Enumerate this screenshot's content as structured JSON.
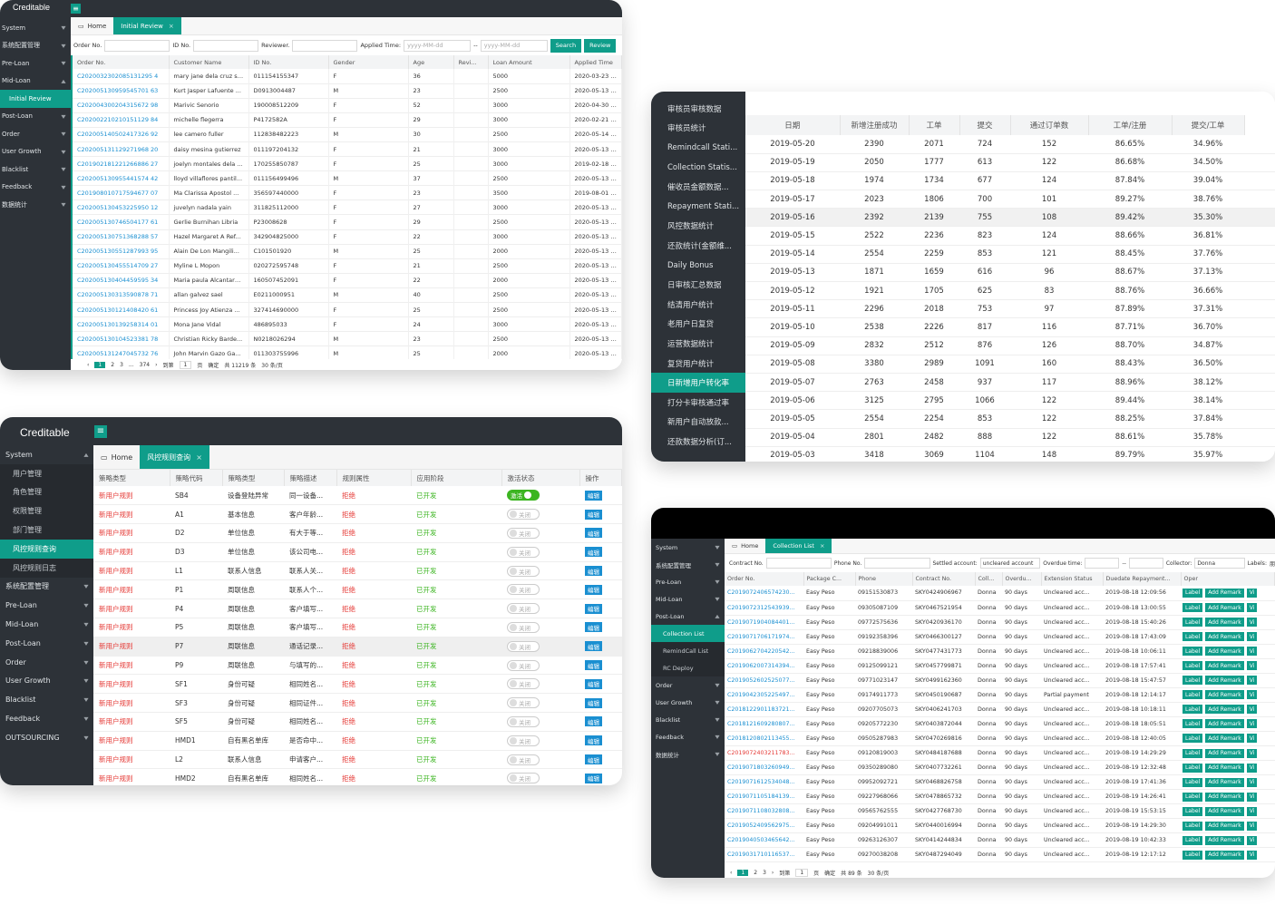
{
  "c1": {
    "logo": "Creditable",
    "hamburger": "≡",
    "menu": [
      {
        "label": "System",
        "arrow": "▾"
      },
      {
        "label": "系统配置管理",
        "arrow": "▾"
      },
      {
        "label": "Pre-Loan",
        "arrow": "▾"
      },
      {
        "label": "Mid-Loan",
        "arrow": "▴"
      },
      {
        "label": "Initial Review",
        "sub": true,
        "active": true
      },
      {
        "label": "Post-Loan",
        "arrow": "▾"
      },
      {
        "label": "Order",
        "arrow": "▾"
      },
      {
        "label": "User Growth",
        "arrow": "▾"
      },
      {
        "label": "Blacklist",
        "arrow": "▾"
      },
      {
        "label": "Feedback",
        "arrow": "▾"
      },
      {
        "label": "数据统计",
        "arrow": "▾"
      }
    ],
    "tab_home": "Home",
    "tab_active": "Initial Review",
    "tab_close": "×",
    "filters": {
      "order_no": "Order No.",
      "id_no": "ID No.",
      "reviewer": "Reviewer.",
      "applied_time": "Applied Time:",
      "date_placeholder": "yyyy-MM-dd",
      "sep": "--",
      "search": "Search",
      "review": "Review"
    },
    "headers": [
      "Order No.",
      "Customer Name",
      "ID No.",
      "Gender",
      "Age",
      "Revi...",
      "Loan Amount",
      "Applied Time"
    ],
    "rows": [
      [
        "C2020032302085131295 4",
        "mary jane dela cruz st...",
        "011154155347",
        "F",
        "36",
        "",
        "5000",
        "2020-03-23 14:"
      ],
      [
        "C202005130959545701 63",
        "Kurt Jasper Lafuente ...",
        "D0913004487",
        "M",
        "23",
        "",
        "2500",
        "2020-05-13 12:"
      ],
      [
        "C202004300204315672 98",
        "Marivic Senorio",
        "190008512209",
        "F",
        "52",
        "",
        "3000",
        "2020-04-30 14:"
      ],
      [
        "C202002210210151129 84",
        "michelle flegerra",
        "P4172582A",
        "F",
        "29",
        "",
        "3000",
        "2020-02-21 14:"
      ],
      [
        "C202005140502417326 92",
        "lee camero fuller",
        "112838482223",
        "M",
        "30",
        "",
        "2500",
        "2020-05-14 05:"
      ],
      [
        "C202005131129271968 20",
        "daisy mesina gutierrez",
        "011197204132",
        "F",
        "21",
        "",
        "3000",
        "2020-05-13 23:"
      ],
      [
        "C201902181221266886 27",
        "joelyn montales dela ...",
        "170255850787",
        "F",
        "25",
        "",
        "3000",
        "2019-02-18 00:"
      ],
      [
        "C202005130955441574 42",
        "lloyd villaflores pantil...",
        "011156499496",
        "M",
        "37",
        "",
        "2500",
        "2020-05-13 21:"
      ],
      [
        "C201908010717594677 07",
        "Ma Clarissa Apostol ...",
        "356597440000",
        "F",
        "23",
        "",
        "3500",
        "2019-08-01 19:"
      ],
      [
        "C202005130453225950 12",
        "juvelyn nadala yain",
        "311825112000",
        "F",
        "27",
        "",
        "3000",
        "2020-05-13 04:"
      ],
      [
        "C202005130746504177 61",
        "Gerlie Burnihan Libria",
        "P23008628",
        "F",
        "29",
        "",
        "2500",
        "2020-05-13 19:"
      ],
      [
        "C202005130751368288 57",
        "Hazel Margaret A Ref...",
        "342904825000",
        "F",
        "22",
        "",
        "3000",
        "2020-05-13 19:"
      ],
      [
        "C202005130551287993 95",
        "Alain De Lon Mangili...",
        "C101501920",
        "M",
        "25",
        "",
        "2000",
        "2020-05-13 17:"
      ],
      [
        "C202005130455514709 27",
        "Myline L Mopon",
        "020272595748",
        "F",
        "21",
        "",
        "2500",
        "2020-05-13 16:"
      ],
      [
        "C202005130404459595 34",
        "Maria paula Alcantara...",
        "160507452091",
        "F",
        "22",
        "",
        "2000",
        "2020-05-13 16:"
      ],
      [
        "C202005130313590878 71",
        "allan galvez sael",
        "E0211000951",
        "M",
        "40",
        "",
        "2500",
        "2020-05-13 15:"
      ],
      [
        "C202005130121408420 61",
        "Princess Joy Atienza ...",
        "327414690000",
        "F",
        "25",
        "",
        "2500",
        "2020-05-13 13:"
      ],
      [
        "C202005130139258314 01",
        "Mona Jane Vidal",
        "486895033",
        "F",
        "24",
        "",
        "3000",
        "2020-05-13 13:"
      ],
      [
        "C202005130104523381 78",
        "Christian Ricky Barde...",
        "N0218026294",
        "M",
        "23",
        "",
        "2500",
        "2020-05-13 13:"
      ],
      [
        "C202005131247045732 76",
        "John Marvin Gazo Ga...",
        "011303755996",
        "M",
        "25",
        "",
        "2000",
        "2020-05-13 12:"
      ]
    ],
    "pager": {
      "prev": "‹",
      "pages": [
        "1",
        "2",
        "3",
        "...",
        "374"
      ],
      "next": "›",
      "goto": "到第",
      "page": "1",
      "page_unit": "页",
      "confirm": "确定",
      "total": "共 11219 条",
      "per": "30 条/页"
    }
  },
  "c2": {
    "menu": [
      "审核员审核数据",
      "审核员统计",
      "Remindcall Stati...",
      "Collection Statis...",
      "催收员金额数据...",
      "Repayment Stati...",
      "风控数据统计",
      "还款统计(金额维...",
      "Daily Bonus",
      "日审核汇总数据",
      "结清用户统计",
      "老用户日复贷",
      "运营数据统计",
      "复贷用户统计",
      "日新增用户转化率",
      "打分卡审核通过率",
      "新用户自动放款...",
      "还款数据分析(订..."
    ],
    "active_index": 14,
    "headers": [
      "日期",
      "新增注册成功",
      "工单",
      "提交",
      "通过订单数",
      "工单/注册",
      "提交/工单"
    ],
    "rows": [
      [
        "2019-05-20",
        "2390",
        "2071",
        "724",
        "152",
        "86.65%",
        "34.96%"
      ],
      [
        "2019-05-19",
        "2050",
        "1777",
        "613",
        "122",
        "86.68%",
        "34.50%"
      ],
      [
        "2019-05-18",
        "1974",
        "1734",
        "677",
        "124",
        "87.84%",
        "39.04%"
      ],
      [
        "2019-05-17",
        "2023",
        "1806",
        "700",
        "101",
        "89.27%",
        "38.76%"
      ],
      [
        "2019-05-16",
        "2392",
        "2139",
        "755",
        "108",
        "89.42%",
        "35.30%"
      ],
      [
        "2019-05-15",
        "2522",
        "2236",
        "823",
        "124",
        "88.66%",
        "36.81%"
      ],
      [
        "2019-05-14",
        "2554",
        "2259",
        "853",
        "121",
        "88.45%",
        "37.76%"
      ],
      [
        "2019-05-13",
        "1871",
        "1659",
        "616",
        "96",
        "88.67%",
        "37.13%"
      ],
      [
        "2019-05-12",
        "1921",
        "1705",
        "625",
        "83",
        "88.76%",
        "36.66%"
      ],
      [
        "2019-05-11",
        "2296",
        "2018",
        "753",
        "97",
        "87.89%",
        "37.31%"
      ],
      [
        "2019-05-10",
        "2538",
        "2226",
        "817",
        "116",
        "87.71%",
        "36.70%"
      ],
      [
        "2019-05-09",
        "2832",
        "2512",
        "876",
        "126",
        "88.70%",
        "34.87%"
      ],
      [
        "2019-05-08",
        "3380",
        "2989",
        "1091",
        "160",
        "88.43%",
        "36.50%"
      ],
      [
        "2019-05-07",
        "2763",
        "2458",
        "937",
        "117",
        "88.96%",
        "38.12%"
      ],
      [
        "2019-05-06",
        "3125",
        "2795",
        "1066",
        "122",
        "89.44%",
        "38.14%"
      ],
      [
        "2019-05-05",
        "2554",
        "2254",
        "853",
        "122",
        "88.25%",
        "37.84%"
      ],
      [
        "2019-05-04",
        "2801",
        "2482",
        "888",
        "122",
        "88.61%",
        "35.78%"
      ],
      [
        "2019-05-03",
        "3418",
        "3069",
        "1104",
        "148",
        "89.79%",
        "35.97%"
      ]
    ],
    "highlight_row": 4
  },
  "c3": {
    "logo": "Creditable",
    "hamburger": "≡",
    "menu": [
      {
        "label": "System",
        "arrow": "▴"
      },
      {
        "label": "用户管理",
        "sub": true
      },
      {
        "label": "角色管理",
        "sub": true
      },
      {
        "label": "权限管理",
        "sub": true
      },
      {
        "label": "部门管理",
        "sub": true
      },
      {
        "label": "风控规则查询",
        "sub": true,
        "active": true
      },
      {
        "label": "风控规则日志",
        "sub": true
      },
      {
        "label": "系统配置管理",
        "arrow": "▾"
      },
      {
        "label": "Pre-Loan",
        "arrow": "▾"
      },
      {
        "label": "Mid-Loan",
        "arrow": "▾"
      },
      {
        "label": "Post-Loan",
        "arrow": "▾"
      },
      {
        "label": "Order",
        "arrow": "▾"
      },
      {
        "label": "User Growth",
        "arrow": "▾"
      },
      {
        "label": "Blacklist",
        "arrow": "▾"
      },
      {
        "label": "Feedback",
        "arrow": "▾"
      },
      {
        "label": "OUTSOURCING",
        "arrow": "▾"
      }
    ],
    "tab_home": "Home",
    "tab_active": "风控规则查询",
    "tab_close": "×",
    "headers": [
      "策略类型",
      "策略代码",
      "策略类型",
      "策略描述",
      "规则属性",
      "应用阶段",
      "激活状态",
      "操作"
    ],
    "rows": [
      [
        "新用户规则",
        "SB4",
        "设备登陆异常",
        "同一设备...",
        "拒绝",
        "已开发",
        "on"
      ],
      [
        "新用户规则",
        "A1",
        "基本信息",
        "客户年龄...",
        "拒绝",
        "已开发",
        "off"
      ],
      [
        "新用户规则",
        "D2",
        "单位信息",
        "有大于等...",
        "拒绝",
        "已开发",
        "off"
      ],
      [
        "新用户规则",
        "D3",
        "单位信息",
        "该公司电...",
        "拒绝",
        "已开发",
        "off"
      ],
      [
        "新用户规则",
        "L1",
        "联系人信息",
        "联系人关...",
        "拒绝",
        "已开发",
        "off"
      ],
      [
        "新用户规则",
        "P1",
        "周联信息",
        "联系人个...",
        "拒绝",
        "已开发",
        "off"
      ],
      [
        "新用户规则",
        "P4",
        "周联信息",
        "客户填写...",
        "拒绝",
        "已开发",
        "off"
      ],
      [
        "新用户规则",
        "P5",
        "周联信息",
        "客户填写...",
        "拒绝",
        "已开发",
        "off"
      ],
      [
        "新用户规则",
        "P7",
        "周联信息",
        "通话记录...",
        "拒绝",
        "已开发",
        "off"
      ],
      [
        "新用户规则",
        "P9",
        "周联信息",
        "与填写的...",
        "拒绝",
        "已开发",
        "off"
      ],
      [
        "新用户规则",
        "SF1",
        "身份可疑",
        "相同姓名...",
        "拒绝",
        "已开发",
        "off"
      ],
      [
        "新用户规则",
        "SF3",
        "身份可疑",
        "相同证件...",
        "拒绝",
        "已开发",
        "off"
      ],
      [
        "新用户规则",
        "SF5",
        "身份可疑",
        "相同姓名...",
        "拒绝",
        "已开发",
        "off"
      ],
      [
        "新用户规则",
        "HMD1",
        "自有黑名单库",
        "是否命中...",
        "拒绝",
        "已开发",
        "off"
      ],
      [
        "新用户规则",
        "L2",
        "联系人信息",
        "申请客户...",
        "拒绝",
        "已开发",
        "off"
      ],
      [
        "新用户规则",
        "HMD2",
        "自有黑名单库",
        "相同姓名...",
        "拒绝",
        "已开发",
        "off"
      ]
    ],
    "highlight_row": 8,
    "toggle_on": "激活",
    "toggle_off": "关闭",
    "edit": "编辑"
  },
  "c4": {
    "menu": [
      {
        "label": "System",
        "arrow": "▾"
      },
      {
        "label": "系统配置管理",
        "arrow": "▾"
      },
      {
        "label": "Pre-Loan",
        "arrow": "▾"
      },
      {
        "label": "Mid-Loan",
        "arrow": "▾"
      },
      {
        "label": "Post-Loan",
        "arrow": "▴"
      },
      {
        "label": "Collection List",
        "sub": true,
        "active": true
      },
      {
        "label": "RemindCall List",
        "sub": true
      },
      {
        "label": "RC Deploy",
        "sub": true
      },
      {
        "label": "Order",
        "arrow": "▾"
      },
      {
        "label": "User Growth",
        "arrow": "▾"
      },
      {
        "label": "Blacklist",
        "arrow": "▾"
      },
      {
        "label": "Feedback",
        "arrow": "▾"
      },
      {
        "label": "数据统计",
        "arrow": "▾"
      }
    ],
    "tab_home": "Home",
    "tab_active": "Collection List",
    "tab_close": "×",
    "filters": {
      "contract_no": "Contract No.",
      "phone_no": "Phone No.",
      "settled": "Settled account:",
      "settled_value": "uncleared account",
      "overdue": "Overdue time:",
      "sep": "--",
      "collector": "Collector:",
      "collector_value": "Donna",
      "labels": "Labels:",
      "labels_value": "朋"
    },
    "headers": [
      "Order No.",
      "Package C...",
      "Phone",
      "Contract No.",
      "Coll...",
      "Overdu...",
      "Extension Status",
      "Duedate Repayment...",
      "Oper"
    ],
    "rows": [
      [
        "C2019072406574230...",
        "Easy Peso",
        "09151530873",
        "SKY0424906967",
        "Donna",
        "90 days",
        "Uncleared acc...",
        "2019-08-18 12:09:56",
        false
      ],
      [
        "C2019072312543939...",
        "Easy Peso",
        "09305087109",
        "SKY0467521954",
        "Donna",
        "90 days",
        "Uncleared acc...",
        "2019-08-18 13:00:55",
        false
      ],
      [
        "C2019071904084401...",
        "Easy Peso",
        "09772575636",
        "SKY0420936170",
        "Donna",
        "90 days",
        "Uncleared acc...",
        "2019-08-18 15:40:26",
        false
      ],
      [
        "C2019071706171974...",
        "Easy Peso",
        "09192358396",
        "SKY0466300127",
        "Donna",
        "90 days",
        "Uncleared acc...",
        "2019-08-18 17:43:09",
        false
      ],
      [
        "C2019062704220542...",
        "Easy Peso",
        "09218839006",
        "SKY0477431773",
        "Donna",
        "90 days",
        "Uncleared acc...",
        "2019-08-18 10:06:11",
        false
      ],
      [
        "C2019062007314394...",
        "Easy Peso",
        "09125099121",
        "SKY0457799871",
        "Donna",
        "90 days",
        "Uncleared acc...",
        "2019-08-18 17:57:41",
        false
      ],
      [
        "C2019052602525077...",
        "Easy Peso",
        "09771023147",
        "SKY0499162360",
        "Donna",
        "90 days",
        "Uncleared acc...",
        "2019-08-18 15:47:57",
        false
      ],
      [
        "C2019042305225497...",
        "Easy Peso",
        "09174911773",
        "SKY0450190687",
        "Donna",
        "90 days",
        "Partial payment",
        "2019-08-18 12:14:17",
        false
      ],
      [
        "C2018122901183721...",
        "Easy Peso",
        "09207705073",
        "SKY0406241703",
        "Donna",
        "90 days",
        "Uncleared acc...",
        "2019-08-18 10:18:11",
        false
      ],
      [
        "C2018121609280807...",
        "Easy Peso",
        "09205772230",
        "SKY0403872044",
        "Donna",
        "90 days",
        "Uncleared acc...",
        "2019-08-18 18:05:51",
        false
      ],
      [
        "C2018120802113455...",
        "Easy Peso",
        "09505287983",
        "SKY0470269816",
        "Donna",
        "90 days",
        "Uncleared acc...",
        "2019-08-18 12:40:05",
        false
      ],
      [
        "C2019072403211783...",
        "Easy Peso",
        "09120819003",
        "SKY0484187688",
        "Donna",
        "90 days",
        "Uncleared acc...",
        "2019-08-19 14:29:29",
        true
      ],
      [
        "C2019071803260949...",
        "Easy Peso",
        "09350289080",
        "SKY0407732261",
        "Donna",
        "90 days",
        "Uncleared acc...",
        "2019-08-19 12:32:48",
        false
      ],
      [
        "C2019071612534048...",
        "Easy Peso",
        "09952092721",
        "SKY0468826758",
        "Donna",
        "90 days",
        "Uncleared acc...",
        "2019-08-19 17:41:36",
        false
      ],
      [
        "C2019071105184139...",
        "Easy Peso",
        "09227968066",
        "SKY0478865732",
        "Donna",
        "90 days",
        "Uncleared acc...",
        "2019-08-19 14:26:41",
        false
      ],
      [
        "C2019071108032808...",
        "Easy Peso",
        "09565762555",
        "SKY0427768730",
        "Donna",
        "90 days",
        "Uncleared acc...",
        "2019-08-19 15:53:15",
        false
      ],
      [
        "C2019052409562975...",
        "Easy Peso",
        "09204991011",
        "SKY0440016994",
        "Donna",
        "90 days",
        "Uncleared acc...",
        "2019-08-19 14:29:30",
        false
      ],
      [
        "C2019040503465642...",
        "Easy Peso",
        "09263126307",
        "SKY0414244834",
        "Donna",
        "90 days",
        "Uncleared acc...",
        "2019-08-19 10:42:33",
        false
      ],
      [
        "C2019031710116537...",
        "Easy Peso",
        "09270038208",
        "SKY0487294049",
        "Donna",
        "90 days",
        "Uncleared acc...",
        "2019-08-19 12:17:12",
        false
      ]
    ],
    "btn_label": "Label",
    "btn_remark": "Add Remark",
    "btn_view": "Vi",
    "pager": {
      "prev": "‹",
      "pages": [
        "1",
        "2",
        "3"
      ],
      "next": "›",
      "goto": "到第",
      "page": "1",
      "page_unit": "页",
      "confirm": "确定",
      "total": "共 89 条",
      "per": "30 条/页"
    }
  }
}
